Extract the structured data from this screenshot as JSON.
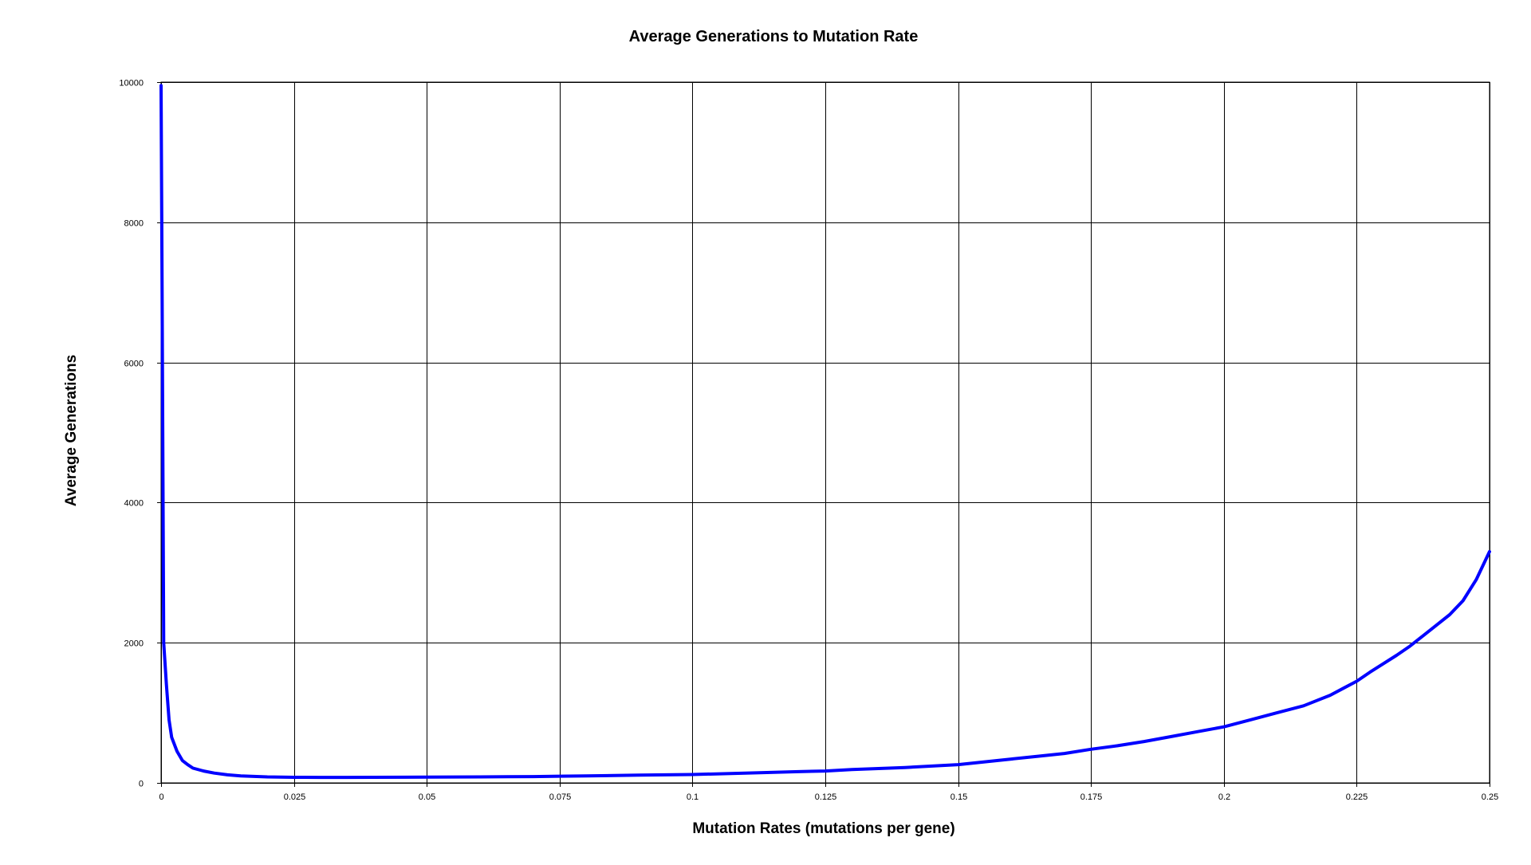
{
  "chart_data": {
    "type": "line",
    "title": "Average Generations to Mutation Rate",
    "xlabel": "Mutation Rates (mutations per gene)",
    "ylabel": "Average Generations",
    "xlim": [
      0,
      0.25
    ],
    "ylim": [
      0,
      10000
    ],
    "x_ticks": [
      "0",
      "0.025",
      "0.05",
      "0.075",
      "0.1",
      "0.125",
      "0.15",
      "0.175",
      "0.2",
      "0.225",
      "0.25"
    ],
    "y_ticks": [
      "0",
      "2000",
      "4000",
      "6000",
      "8000",
      "10000"
    ],
    "grid": true,
    "legend": "none",
    "series": [
      {
        "color": "#0000ff",
        "x": [
          0.0,
          0.0002,
          0.0005,
          0.001,
          0.0015,
          0.002,
          0.003,
          0.004,
          0.005,
          0.006,
          0.008,
          0.01,
          0.0125,
          0.015,
          0.02,
          0.025,
          0.03,
          0.035,
          0.04,
          0.05,
          0.06,
          0.07,
          0.075,
          0.08,
          0.09,
          0.1,
          0.11,
          0.12,
          0.125,
          0.13,
          0.14,
          0.15,
          0.155,
          0.16,
          0.165,
          0.17,
          0.175,
          0.18,
          0.185,
          0.19,
          0.195,
          0.2,
          0.205,
          0.21,
          0.215,
          0.22,
          0.2225,
          0.225,
          0.2275,
          0.23,
          0.2325,
          0.235,
          0.2375,
          0.24,
          0.2425,
          0.245,
          0.2475,
          0.25
        ],
        "y": [
          9950,
          7000,
          2000,
          1400,
          900,
          650,
          450,
          320,
          260,
          210,
          170,
          140,
          115,
          100,
          85,
          80,
          78,
          78,
          80,
          82,
          85,
          90,
          95,
          100,
          110,
          120,
          140,
          160,
          170,
          190,
          220,
          260,
          300,
          340,
          380,
          420,
          480,
          530,
          590,
          660,
          730,
          800,
          900,
          1000,
          1100,
          1250,
          1350,
          1450,
          1580,
          1700,
          1820,
          1950,
          2100,
          2250,
          2400,
          2600,
          2900,
          3300
        ]
      }
    ]
  }
}
